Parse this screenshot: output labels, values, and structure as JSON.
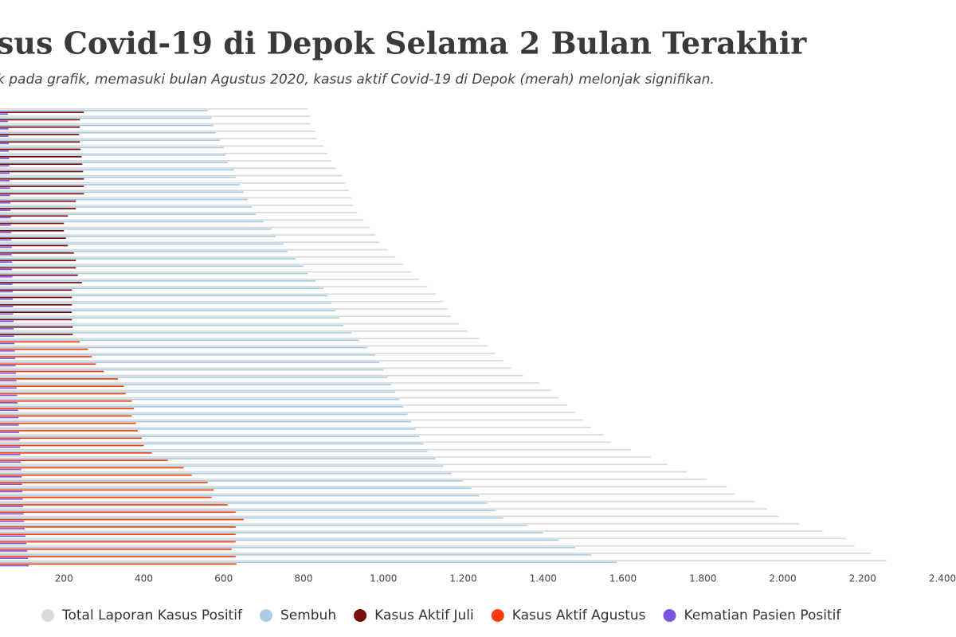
{
  "chart_data": {
    "type": "bar",
    "orientation": "horizontal",
    "title": "sus Covid-19 di Depok Selama 2 Bulan Terakhir",
    "subtitle": "k pada grafik, memasuki bulan Agustus 2020, kasus aktif Covid-19 di Depok (merah) melonjak signifikan.",
    "categories": [
      null,
      null,
      null,
      null,
      null,
      null,
      null,
      null,
      null,
      null,
      null,
      null,
      null,
      null,
      null,
      null,
      null,
      null,
      null,
      null,
      null,
      null,
      null,
      null,
      null,
      null,
      null,
      null,
      null,
      null,
      null,
      null,
      null,
      null,
      null,
      null,
      null,
      null,
      null,
      null,
      null,
      null,
      null,
      null,
      null,
      null,
      null,
      null,
      null,
      null,
      null,
      null,
      null,
      null,
      null,
      null,
      null,
      null,
      null,
      null,
      null,
      null
    ],
    "xlim": [
      0,
      2400
    ],
    "xticks": [
      200,
      400,
      600,
      800,
      {
        "value": 1000,
        "label": "1.000"
      },
      {
        "value": 1200,
        "label": "1.200"
      },
      {
        "value": 1400,
        "label": "1.400"
      },
      {
        "value": 1600,
        "label": "1.600"
      },
      {
        "value": 1800,
        "label": "1.800"
      },
      {
        "value": 2000,
        "label": "2.000"
      },
      {
        "value": 2200,
        "label": "2.200"
      },
      {
        "value": 2400,
        "label": "2.400"
      }
    ],
    "series": [
      {
        "name": "Total Laporan Kasus Positif",
        "color": "#dadada",
        "slot": 0,
        "values": [
          810,
          816,
          816,
          830,
          834,
          850,
          860,
          870,
          880,
          896,
          904,
          914,
          920,
          924,
          934,
          950,
          966,
          980,
          990,
          1010,
          1030,
          1050,
          1070,
          1090,
          1110,
          1130,
          1150,
          1160,
          1170,
          1190,
          1210,
          1240,
          1260,
          1280,
          1300,
          1320,
          1350,
          1390,
          1420,
          1440,
          1460,
          1480,
          1500,
          1520,
          1550,
          1570,
          1620,
          1670,
          1710,
          1760,
          1810,
          1860,
          1880,
          1930,
          1960,
          1990,
          2040,
          2100,
          2160,
          2180,
          2220,
          2260
        ]
      },
      {
        "name": "Sembuh",
        "color": "#a8cde3",
        "slot": 1,
        "values": [
          560,
          570,
          575,
          580,
          590,
          600,
          605,
          610,
          625,
          630,
          640,
          650,
          660,
          670,
          680,
          700,
          720,
          730,
          750,
          760,
          780,
          800,
          810,
          830,
          850,
          860,
          870,
          880,
          890,
          900,
          920,
          940,
          960,
          980,
          990,
          1000,
          1010,
          1020,
          1030,
          1040,
          1050,
          1060,
          1070,
          1080,
          1090,
          1100,
          1110,
          1130,
          1150,
          1170,
          1200,
          1220,
          1240,
          1260,
          1280,
          1300,
          1360,
          1400,
          1440,
          1480,
          1520,
          1585
        ]
      },
      {
        "name": "Kasus Aktif Juli",
        "color": "#7a0b0b",
        "slot": 2,
        "values": [
          250,
          240,
          240,
          238,
          240,
          242,
          244,
          246,
          248,
          250,
          250,
          250,
          230,
          230,
          210,
          200,
          200,
          205,
          210,
          225,
          230,
          230,
          235,
          245,
          220,
          220,
          220,
          220,
          220,
          222,
          222,
          null,
          null,
          null,
          null,
          null,
          null,
          null,
          null,
          null,
          null,
          null,
          null,
          null,
          null,
          null,
          null,
          null,
          null,
          null,
          null,
          null,
          null,
          null,
          null,
          null,
          null,
          null,
          null,
          null,
          null,
          null
        ]
      },
      {
        "name": "Kasus Aktif Agustus",
        "color": "#ff3d0c",
        "slot": 2,
        "values": [
          null,
          null,
          null,
          null,
          null,
          null,
          null,
          null,
          null,
          null,
          null,
          null,
          null,
          null,
          null,
          null,
          null,
          null,
          null,
          null,
          null,
          null,
          null,
          null,
          null,
          null,
          null,
          null,
          null,
          null,
          null,
          240,
          260,
          270,
          280,
          300,
          335,
          350,
          355,
          370,
          375,
          370,
          380,
          385,
          395,
          400,
          420,
          460,
          500,
          520,
          560,
          575,
          570,
          610,
          630,
          650,
          630,
          630,
          630,
          620,
          630,
          632
        ]
      },
      {
        "name": "Kematian Pasien Positif",
        "color": "#7a55e0",
        "slot": 3,
        "values": [
          60,
          60,
          61,
          61,
          62,
          62,
          63,
          63,
          64,
          64,
          65,
          65,
          66,
          66,
          67,
          67,
          68,
          68,
          69,
          69,
          70,
          70,
          71,
          71,
          72,
          72,
          73,
          73,
          74,
          74,
          75,
          76,
          77,
          78,
          79,
          80,
          81,
          82,
          83,
          84,
          85,
          86,
          87,
          88,
          89,
          90,
          91,
          92,
          93,
          94,
          95,
          96,
          97,
          98,
          99,
          100,
          102,
          104,
          106,
          108,
          110,
          112
        ]
      }
    ]
  }
}
